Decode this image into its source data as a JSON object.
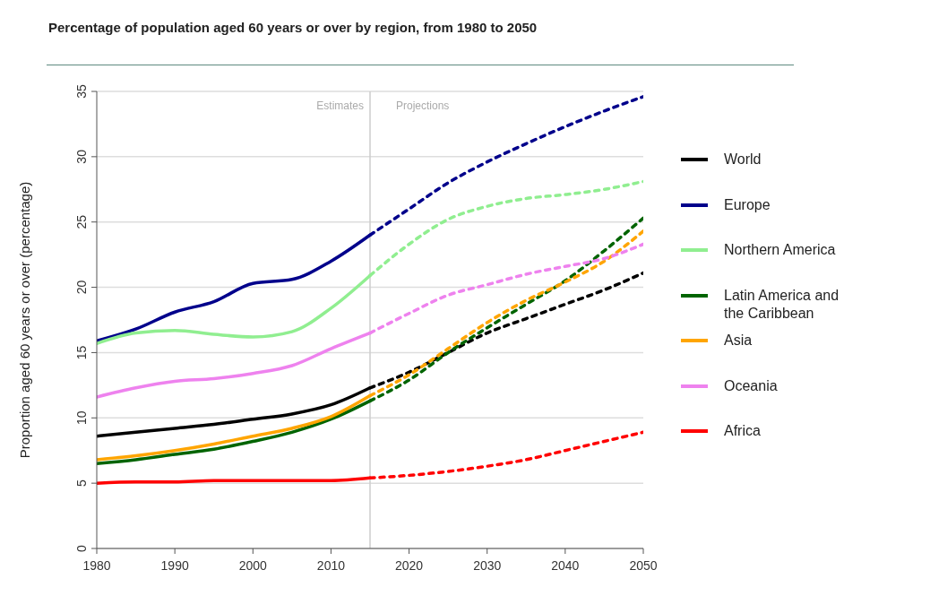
{
  "chart_data": {
    "type": "line",
    "title": "Percentage of population aged 60 years or over by region, from 1980 to 2050",
    "ylabel": "Proportion aged 60 years or over (percentage)",
    "xlim": [
      1980,
      2050
    ],
    "xticks": [
      1980,
      1990,
      2000,
      2010,
      2020,
      2030,
      2040,
      2050
    ],
    "ylim": [
      0,
      35
    ],
    "yticks": [
      0,
      5,
      10,
      15,
      20,
      25,
      30,
      35
    ],
    "grid": "y",
    "legend": "right",
    "marker": "none",
    "ref_lines": [
      {
        "axis": "x",
        "value": 2015,
        "color": "#cccccc"
      }
    ],
    "annotations": [
      "Estimates",
      "Projections"
    ],
    "series": [
      {
        "name": "World",
        "color": "#000000",
        "line_style": "solid",
        "x": [
          1980,
          1985,
          1990,
          1995,
          2000,
          2005,
          2010,
          2015
        ],
        "values": [
          8.6,
          8.9,
          9.2,
          9.5,
          9.9,
          10.3,
          11.0,
          12.3
        ]
      },
      {
        "name": "Europe",
        "color": "#00008b",
        "line_style": "solid",
        "x": [
          1980,
          1985,
          1990,
          1995,
          2000,
          2005,
          2010,
          2015
        ],
        "values": [
          15.9,
          16.8,
          18.1,
          18.9,
          20.3,
          20.6,
          22.0,
          24.0
        ]
      },
      {
        "name": "Northern America",
        "color": "#90ee90",
        "line_style": "solid",
        "x": [
          1980,
          1985,
          1990,
          1995,
          2000,
          2005,
          2010,
          2015
        ],
        "values": [
          15.7,
          16.5,
          16.7,
          16.4,
          16.2,
          16.6,
          18.4,
          20.9
        ]
      },
      {
        "name": "Latin America and the Caribbean",
        "color": "#006400",
        "line_style": "solid",
        "x": [
          1980,
          1985,
          1990,
          1995,
          2000,
          2005,
          2010,
          2015
        ],
        "values": [
          6.5,
          6.8,
          7.2,
          7.6,
          8.2,
          8.9,
          9.9,
          11.3
        ]
      },
      {
        "name": "Asia",
        "color": "#ffa500",
        "line_style": "solid",
        "x": [
          1980,
          1985,
          1990,
          1995,
          2000,
          2005,
          2010,
          2015
        ],
        "values": [
          6.8,
          7.1,
          7.5,
          8.0,
          8.6,
          9.2,
          10.1,
          11.7
        ]
      },
      {
        "name": "Oceania",
        "color": "#ee82ee",
        "line_style": "solid",
        "x": [
          1980,
          1985,
          1990,
          1995,
          2000,
          2005,
          2010,
          2015
        ],
        "values": [
          11.6,
          12.3,
          12.8,
          13.0,
          13.4,
          14.0,
          15.3,
          16.5
        ]
      },
      {
        "name": "Africa",
        "color": "#ff0000",
        "line_style": "solid",
        "x": [
          1980,
          1985,
          1990,
          1995,
          2000,
          2005,
          2010,
          2015
        ],
        "values": [
          5.0,
          5.1,
          5.1,
          5.2,
          5.2,
          5.2,
          5.2,
          5.4
        ]
      },
      {
        "color": "#000000",
        "line_style": "dotted",
        "x": [
          2015,
          2020,
          2025,
          2030,
          2035,
          2040,
          2045,
          2050
        ],
        "values": [
          12.3,
          13.5,
          15.0,
          16.5,
          17.6,
          18.7,
          19.8,
          21.1
        ]
      },
      {
        "color": "#00008b",
        "line_style": "dotted",
        "x": [
          2015,
          2020,
          2025,
          2030,
          2035,
          2040,
          2045,
          2050
        ],
        "values": [
          24.0,
          26.0,
          28.0,
          29.6,
          31.0,
          32.3,
          33.5,
          34.6
        ]
      },
      {
        "color": "#90ee90",
        "line_style": "dotted",
        "x": [
          2015,
          2020,
          2025,
          2030,
          2035,
          2040,
          2045,
          2050
        ],
        "values": [
          20.9,
          23.3,
          25.2,
          26.2,
          26.8,
          27.1,
          27.5,
          28.1
        ]
      },
      {
        "color": "#006400",
        "line_style": "dotted",
        "x": [
          2015,
          2020,
          2025,
          2030,
          2035,
          2040,
          2045,
          2050
        ],
        "values": [
          11.3,
          12.9,
          15.0,
          16.9,
          18.7,
          20.5,
          22.8,
          25.3
        ]
      },
      {
        "color": "#ffa500",
        "line_style": "dotted",
        "x": [
          2015,
          2020,
          2025,
          2030,
          2035,
          2040,
          2045,
          2050
        ],
        "values": [
          11.7,
          13.3,
          15.3,
          17.3,
          19.0,
          20.4,
          22.0,
          24.3
        ]
      },
      {
        "color": "#ee82ee",
        "line_style": "dotted",
        "x": [
          2015,
          2020,
          2025,
          2030,
          2035,
          2040,
          2045,
          2050
        ],
        "values": [
          16.5,
          18.0,
          19.4,
          20.2,
          21.0,
          21.6,
          22.2,
          23.3
        ]
      },
      {
        "color": "#ff0000",
        "line_style": "dotted",
        "x": [
          2015,
          2020,
          2025,
          2030,
          2035,
          2040,
          2045,
          2050
        ],
        "values": [
          5.4,
          5.6,
          5.9,
          6.3,
          6.8,
          7.5,
          8.2,
          8.9
        ]
      }
    ]
  }
}
